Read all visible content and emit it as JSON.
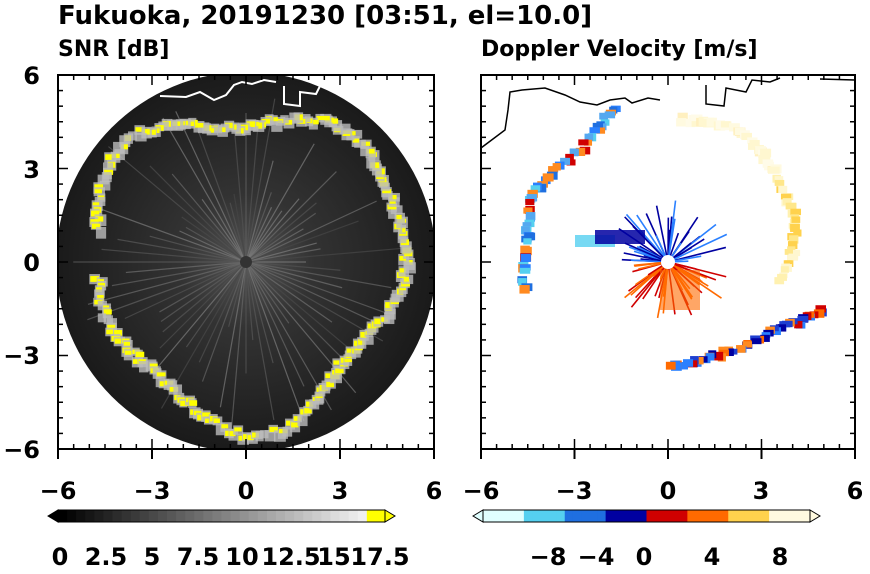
{
  "title": "Fukuoka, 20191230 [03:51, el=10.0]",
  "panels": [
    {
      "title": "SNR [dB]"
    },
    {
      "title": "Doppler Velocity [m/s]"
    }
  ],
  "chart_data": [
    {
      "type": "heatmap",
      "title": "SNR [dB]",
      "xlim": [
        -6,
        6
      ],
      "ylim": [
        -6,
        6
      ],
      "x_ticks": [
        "−6",
        "−3",
        "0",
        "3",
        "6"
      ],
      "y_ticks": [
        "6",
        "3",
        "0",
        "−3",
        "−6"
      ],
      "colorbar": {
        "range": [
          0,
          18.5
        ],
        "ticks": [
          "0",
          "2.5",
          "5",
          "7.5",
          "10",
          "12.5",
          "15",
          "17.5"
        ],
        "colors": [
          "#000000",
          "#ffffff",
          "#ffff00"
        ]
      }
    },
    {
      "type": "heatmap",
      "title": "Doppler Velocity [m/s]",
      "xlim": [
        -6,
        6
      ],
      "ylim": [
        -6,
        6
      ],
      "x_ticks": [
        "−6",
        "−3",
        "0",
        "3",
        "6"
      ],
      "colorbar": {
        "range": [
          -10,
          10
        ],
        "ticks": [
          "−8",
          "−4",
          "0",
          "4",
          "8"
        ],
        "colors": [
          "#e0ffff",
          "#55d0f0",
          "#1f6fe0",
          "#0000a0",
          "#d00000",
          "#ff6a00",
          "#ffd24d",
          "#fffae0"
        ]
      }
    }
  ]
}
